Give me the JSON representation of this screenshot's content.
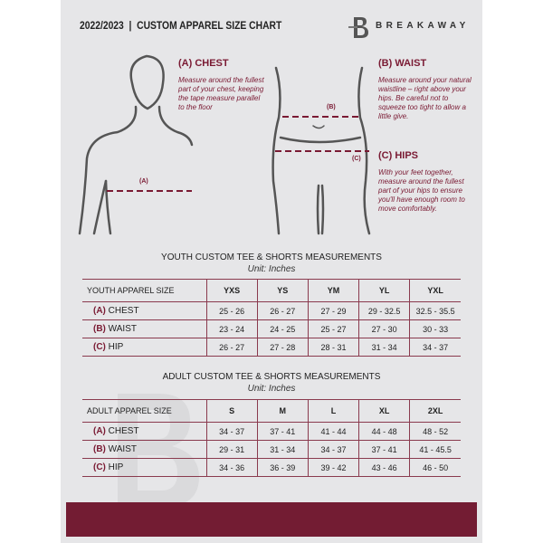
{
  "header": {
    "title": "2022/2023  |  CUSTOM APPAREL SIZE CHART",
    "brand": "BREAKAWAY"
  },
  "measure": {
    "chest": {
      "title": "(A) CHEST",
      "desc": "Measure around the fullest part of your chest, keeping the tape measure parallel to the floor",
      "marker": "(A)"
    },
    "waist": {
      "title": "(B) WAIST",
      "desc": "Measure around your natural waistline – right above your hips. Be careful not to squeeze too tight to allow a little give.",
      "marker": "(B)"
    },
    "hips": {
      "title": "(C) HIPS",
      "desc": "With your feet together, measure around the fullest part of your hips to ensure you'll have enough room to move comfortably.",
      "marker": "(C)"
    }
  },
  "youth": {
    "title": "YOUTH CUSTOM TEE & SHORTS MEASUREMENTS",
    "unit": "Unit: Inches",
    "header": "YOUTH APPAREL SIZE",
    "sizes": [
      "YXS",
      "YS",
      "YM",
      "YL",
      "YXL"
    ],
    "rows": [
      {
        "code": "(A)",
        "name": "CHEST",
        "values": [
          "25 - 26",
          "26 - 27",
          "27 - 29",
          "29 - 32.5",
          "32.5 - 35.5"
        ]
      },
      {
        "code": "(B)",
        "name": "WAIST",
        "values": [
          "23 - 24",
          "24 - 25",
          "25 - 27",
          "27 - 30",
          "30 - 33"
        ]
      },
      {
        "code": "(C)",
        "name": "HIP",
        "values": [
          "26 - 27",
          "27 - 28",
          "28 - 31",
          "31 - 34",
          "34 - 37"
        ]
      }
    ]
  },
  "adult": {
    "title": "ADULT CUSTOM TEE & SHORTS MEASUREMENTS",
    "unit": "Unit: Inches",
    "header": "ADULT APPAREL SIZE",
    "sizes": [
      "S",
      "M",
      "L",
      "XL",
      "2XL"
    ],
    "rows": [
      {
        "code": "(A)",
        "name": "CHEST",
        "values": [
          "34 - 37",
          "37 - 41",
          "41 - 44",
          "44 - 48",
          "48 - 52"
        ]
      },
      {
        "code": "(B)",
        "name": "WAIST",
        "values": [
          "29 - 31",
          "31 - 34",
          "34 - 37",
          "37 - 41",
          "41 - 45.5"
        ]
      },
      {
        "code": "(C)",
        "name": "HIP",
        "values": [
          "34 - 36",
          "36 - 39",
          "39 - 42",
          "43 - 46",
          "46 - 50"
        ]
      }
    ]
  },
  "colors": {
    "accent": "#7a1a33",
    "band": "#731c33",
    "page": "#e6e6e8"
  }
}
